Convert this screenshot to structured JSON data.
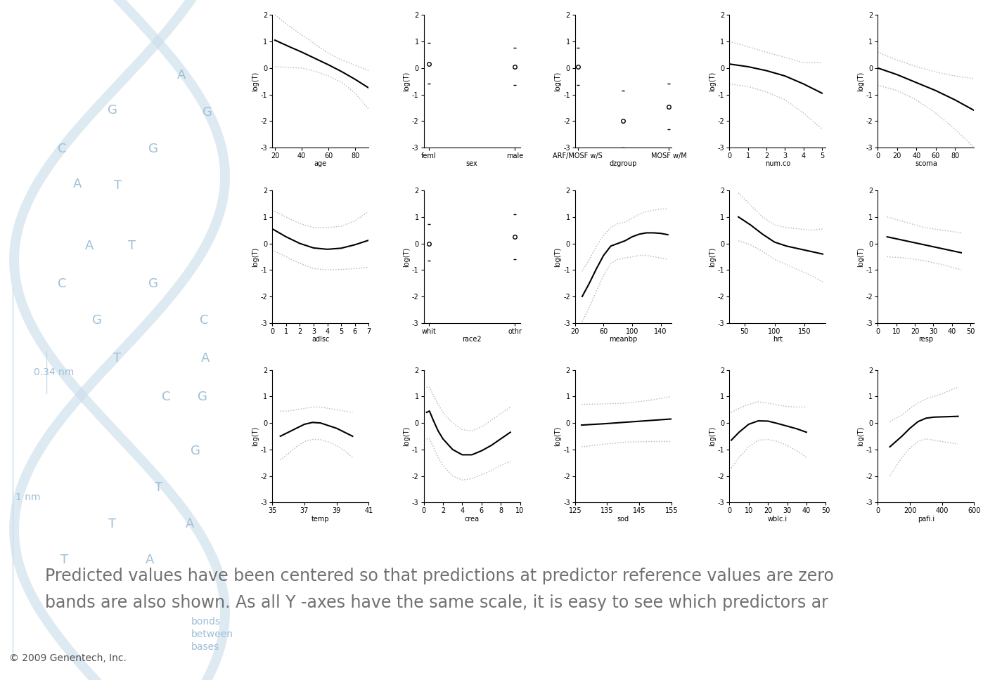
{
  "chart_data": [
    {
      "type": "line",
      "xlabel": "age",
      "ylabel": "log(T)",
      "x": [
        20,
        30,
        40,
        50,
        60,
        70,
        80,
        90
      ],
      "values": [
        1.05,
        0.82,
        0.6,
        0.36,
        0.12,
        -0.14,
        -0.43,
        -0.75
      ],
      "lower": [
        0.05,
        0.02,
        0.0,
        -0.12,
        -0.3,
        -0.55,
        -0.95,
        -1.55
      ],
      "upper": [
        2.0,
        1.6,
        1.25,
        0.9,
        0.55,
        0.3,
        0.1,
        -0.1
      ],
      "color": "#000000",
      "xlim": [
        18,
        90
      ],
      "xticks": [
        20,
        40,
        60,
        80
      ],
      "ylim": [
        -3,
        2
      ],
      "yticks": [
        -3,
        -2,
        -1,
        0,
        1,
        2
      ]
    },
    {
      "type": "point",
      "xlabel": "sex",
      "ylabel": "log(T)",
      "categories": [
        "feml",
        "male"
      ],
      "values": [
        0.15,
        0.05
      ],
      "lower": [
        -0.6,
        -0.65
      ],
      "upper": [
        0.95,
        0.75
      ],
      "color": "#000000",
      "marker": "o",
      "ylim": [
        -3,
        2
      ],
      "yticks": [
        -3,
        -2,
        -1,
        0,
        1,
        2
      ]
    },
    {
      "type": "point",
      "xlabel": "dzgroup",
      "ylabel": "log(T)",
      "categories": [
        "ARF/MOSF w/S",
        null,
        "MOSF w/M"
      ],
      "values": [
        0.05,
        -2.0,
        -1.45
      ],
      "lower": [
        -0.65,
        -3.0,
        -2.3
      ],
      "upper": [
        0.75,
        -0.85,
        -0.6
      ],
      "color": "#000000",
      "marker": "o",
      "ylim": [
        -3,
        2
      ],
      "yticks": [
        -3,
        -2,
        -1,
        0,
        1,
        2
      ]
    },
    {
      "type": "line",
      "xlabel": "num.co",
      "ylabel": "log(T)",
      "x": [
        0,
        1,
        2,
        3,
        4,
        5
      ],
      "values": [
        0.15,
        0.05,
        -0.1,
        -0.3,
        -0.6,
        -0.95
      ],
      "lower": [
        -0.6,
        -0.7,
        -0.9,
        -1.2,
        -1.7,
        -2.3
      ],
      "upper": [
        1.0,
        0.8,
        0.6,
        0.4,
        0.2,
        0.2
      ],
      "color": "#000000",
      "xlim": [
        0,
        5.2
      ],
      "xticks": [
        0,
        1,
        2,
        3,
        4,
        5
      ],
      "ylim": [
        -3,
        2
      ],
      "yticks": [
        -3,
        -2,
        -1,
        0,
        1,
        2
      ]
    },
    {
      "type": "line",
      "xlabel": "scoma",
      "ylabel": "log(T)",
      "x": [
        0,
        20,
        40,
        60,
        80,
        100
      ],
      "values": [
        0.0,
        -0.25,
        -0.55,
        -0.85,
        -1.2,
        -1.6
      ],
      "lower": [
        -0.65,
        -0.85,
        -1.2,
        -1.7,
        -2.3,
        -3.0
      ],
      "upper": [
        0.6,
        0.3,
        0.05,
        -0.15,
        -0.3,
        -0.4
      ],
      "color": "#000000",
      "xlim": [
        0,
        100
      ],
      "xticks": [
        0,
        20,
        40,
        60,
        80
      ],
      "ylim": [
        -3,
        2
      ],
      "yticks": [
        -3,
        -2,
        -1,
        0,
        1,
        2
      ]
    },
    {
      "type": "line",
      "xlabel": "adlsc",
      "ylabel": "log(T)",
      "x": [
        0,
        1,
        2,
        3,
        4,
        5,
        6,
        7
      ],
      "values": [
        0.55,
        0.25,
        0.0,
        -0.17,
        -0.22,
        -0.18,
        -0.05,
        0.12
      ],
      "lower": [
        -0.25,
        -0.5,
        -0.75,
        -0.95,
        -1.0,
        -0.98,
        -0.95,
        -0.9
      ],
      "upper": [
        1.25,
        1.0,
        0.75,
        0.6,
        0.6,
        0.65,
        0.85,
        1.2
      ],
      "color": "#000000",
      "xlim": [
        0,
        7
      ],
      "xticks": [
        0,
        1,
        2,
        3,
        4,
        5,
        6,
        7
      ],
      "ylim": [
        -3,
        2
      ],
      "yticks": [
        -3,
        -2,
        -1,
        0,
        1,
        2
      ]
    },
    {
      "type": "point",
      "xlabel": "race2",
      "ylabel": "log(T)",
      "categories": [
        "whit",
        "othr"
      ],
      "values": [
        0.0,
        0.25
      ],
      "lower": [
        -0.65,
        -0.6
      ],
      "upper": [
        0.72,
        1.1
      ],
      "color": "#000000",
      "marker": "o",
      "ylim": [
        -3,
        2
      ],
      "yticks": [
        -3,
        -2,
        -1,
        0,
        1,
        2
      ]
    },
    {
      "type": "line",
      "xlabel": "meanbp",
      "ylabel": "log(T)",
      "x": [
        30,
        40,
        50,
        60,
        70,
        80,
        90,
        100,
        110,
        120,
        130,
        140,
        150
      ],
      "values": [
        -2.0,
        -1.5,
        -0.95,
        -0.45,
        -0.1,
        0.0,
        0.1,
        0.25,
        0.35,
        0.4,
        0.4,
        0.38,
        0.33
      ],
      "lower": [
        -2.95,
        -2.4,
        -1.8,
        -1.2,
        -0.75,
        -0.6,
        -0.55,
        -0.5,
        -0.45,
        -0.45,
        -0.5,
        -0.55,
        -0.6
      ],
      "upper": [
        -1.05,
        -0.6,
        -0.1,
        0.3,
        0.6,
        0.75,
        0.8,
        0.95,
        1.1,
        1.2,
        1.25,
        1.3,
        1.3
      ],
      "color": "#000000",
      "xlim": [
        20,
        155
      ],
      "xticks": [
        20,
        60,
        100,
        140
      ],
      "ylim": [
        -3,
        2
      ],
      "yticks": [
        -3,
        -2,
        -1,
        0,
        1,
        2
      ]
    },
    {
      "type": "line",
      "xlabel": "hrt",
      "ylabel": "log(T)",
      "x": [
        40,
        60,
        80,
        100,
        120,
        140,
        160,
        180
      ],
      "values": [
        1.0,
        0.7,
        0.35,
        0.05,
        -0.1,
        -0.2,
        -0.3,
        -0.4
      ],
      "lower": [
        0.1,
        -0.05,
        -0.3,
        -0.6,
        -0.8,
        -1.0,
        -1.2,
        -1.45
      ],
      "upper": [
        1.9,
        1.45,
        1.0,
        0.7,
        0.6,
        0.55,
        0.5,
        0.55
      ],
      "color": "#000000",
      "xlim": [
        25,
        185
      ],
      "xticks": [
        50,
        100,
        150
      ],
      "ylim": [
        -3,
        2
      ],
      "yticks": [
        -3,
        -2,
        -1,
        0,
        1,
        2
      ]
    },
    {
      "type": "line",
      "xlabel": "resp",
      "ylabel": "log(T)",
      "x": [
        5,
        15,
        25,
        35,
        45
      ],
      "values": [
        0.25,
        0.1,
        -0.05,
        -0.2,
        -0.35
      ],
      "lower": [
        -0.5,
        -0.55,
        -0.65,
        -0.8,
        -1.0
      ],
      "upper": [
        1.0,
        0.8,
        0.6,
        0.5,
        0.4
      ],
      "color": "#000000",
      "xlim": [
        0,
        52
      ],
      "xticks": [
        0,
        10,
        20,
        30,
        40,
        50
      ],
      "ylim": [
        -3,
        2
      ],
      "yticks": [
        -3,
        -2,
        -1,
        0,
        1,
        2
      ]
    },
    {
      "type": "line",
      "xlabel": "temp",
      "ylabel": "log(T)",
      "x": [
        35.5,
        36,
        36.5,
        37,
        37.5,
        38,
        38.5,
        39,
        39.5,
        40
      ],
      "values": [
        -0.5,
        -0.35,
        -0.2,
        -0.05,
        0.02,
        0.0,
        -0.1,
        -0.2,
        -0.35,
        -0.5
      ],
      "lower": [
        -1.4,
        -1.15,
        -0.9,
        -0.7,
        -0.62,
        -0.63,
        -0.72,
        -0.85,
        -1.05,
        -1.3
      ],
      "upper": [
        0.45,
        0.45,
        0.5,
        0.55,
        0.6,
        0.6,
        0.55,
        0.5,
        0.45,
        0.4
      ],
      "color": "#000000",
      "xlim": [
        35,
        41
      ],
      "xticks": [
        35,
        37,
        39,
        41
      ],
      "ylim": [
        -3,
        2
      ],
      "yticks": [
        -3,
        -2,
        -1,
        0,
        1,
        2
      ]
    },
    {
      "type": "line",
      "xlabel": "crea",
      "ylabel": "log(T)",
      "x": [
        0.3,
        0.6,
        1,
        1.5,
        2,
        3,
        4,
        5,
        6,
        7,
        8,
        9
      ],
      "values": [
        0.4,
        0.45,
        0.1,
        -0.3,
        -0.6,
        -1.0,
        -1.2,
        -1.2,
        -1.05,
        -0.85,
        -0.6,
        -0.35
      ],
      "lower": [
        -0.6,
        -0.6,
        -0.9,
        -1.3,
        -1.6,
        -2.0,
        -2.15,
        -2.1,
        -1.95,
        -1.8,
        -1.6,
        -1.45
      ],
      "upper": [
        1.35,
        1.35,
        1.05,
        0.7,
        0.4,
        0.0,
        -0.25,
        -0.3,
        -0.15,
        0.1,
        0.35,
        0.6
      ],
      "color": "#000000",
      "xlim": [
        0,
        10
      ],
      "xticks": [
        0,
        2,
        4,
        6,
        8,
        10
      ],
      "ylim": [
        -3,
        2
      ],
      "yticks": [
        -3,
        -2,
        -1,
        0,
        1,
        2
      ]
    },
    {
      "type": "line",
      "xlabel": "sod",
      "ylabel": "log(T)",
      "x": [
        127,
        134,
        141,
        148,
        155
      ],
      "values": [
        -0.08,
        -0.03,
        0.03,
        0.09,
        0.15
      ],
      "lower": [
        -0.9,
        -0.8,
        -0.72,
        -0.7,
        -0.7
      ],
      "upper": [
        0.7,
        0.72,
        0.75,
        0.85,
        1.0
      ],
      "color": "#000000",
      "xlim": [
        125,
        155
      ],
      "xticks": [
        125,
        135,
        145,
        155
      ],
      "ylim": [
        -3,
        2
      ],
      "yticks": [
        -3,
        -2,
        -1,
        0,
        1,
        2
      ]
    },
    {
      "type": "line",
      "xlabel": "wblc.i",
      "ylabel": "log(T)",
      "x": [
        1,
        5,
        10,
        15,
        20,
        25,
        30,
        35,
        40
      ],
      "values": [
        -0.65,
        -0.35,
        -0.05,
        0.08,
        0.07,
        -0.02,
        -0.12,
        -0.22,
        -0.35
      ],
      "lower": [
        -1.7,
        -1.3,
        -0.9,
        -0.65,
        -0.62,
        -0.7,
        -0.85,
        -1.05,
        -1.3
      ],
      "upper": [
        0.4,
        0.55,
        0.7,
        0.8,
        0.75,
        0.68,
        0.62,
        0.6,
        0.6
      ],
      "color": "#000000",
      "xlim": [
        0,
        50
      ],
      "xticks": [
        0,
        10,
        20,
        30,
        40,
        50
      ],
      "ylim": [
        -3,
        2
      ],
      "yticks": [
        -3,
        -2,
        -1,
        0,
        1,
        2
      ]
    },
    {
      "type": "line",
      "xlabel": "pafi.i",
      "ylabel": "log(T)",
      "x": [
        75,
        150,
        200,
        250,
        300,
        350,
        400,
        500
      ],
      "values": [
        -0.9,
        -0.5,
        -0.2,
        0.05,
        0.18,
        0.22,
        0.23,
        0.25
      ],
      "lower": [
        -2.0,
        -1.3,
        -0.95,
        -0.7,
        -0.6,
        -0.65,
        -0.7,
        -0.8
      ],
      "upper": [
        0.05,
        0.3,
        0.55,
        0.75,
        0.9,
        1.0,
        1.1,
        1.35
      ],
      "color": "#000000",
      "xlim": [
        0,
        600
      ],
      "xticks": [
        0,
        200,
        400,
        600
      ],
      "ylim": [
        -3,
        2
      ],
      "yticks": [
        -3,
        -2,
        -1,
        0,
        1,
        2
      ]
    }
  ],
  "caption": [
    "Predicted values have been centered so that predictions at predictor reference values are zero",
    "bands are also shown. As all Y -axes have the same scale, it is easy to see which predictors ar"
  ],
  "copyright": "© 2009 Genentech, Inc.",
  "background_labels": [
    "A",
    "G",
    "G",
    "C",
    "G",
    "A",
    "T",
    "A",
    "T",
    "C",
    "G",
    "G",
    "C",
    "T",
    "A",
    "C",
    "G",
    "G",
    "T",
    "T",
    "A",
    "T",
    "A",
    "0.34 nm",
    "1 nm",
    "bonds",
    "between",
    "bases"
  ]
}
